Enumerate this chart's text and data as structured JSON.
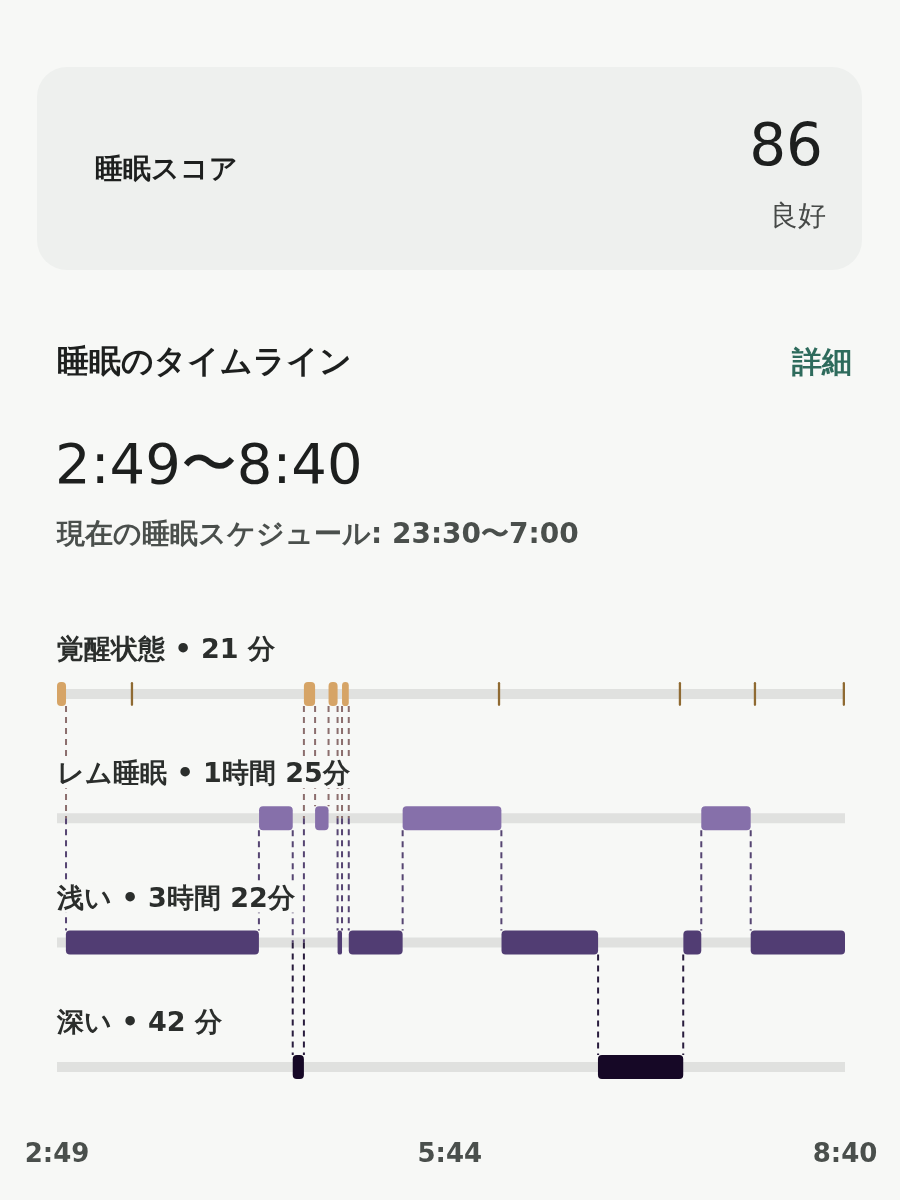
{
  "chart_data": [
    {
      "type": "other",
      "title": "睡眠スコア",
      "annotations": [
        "86",
        "良好"
      ]
    },
    {
      "type": "bar",
      "orientation": "horizontal",
      "title": "睡眠のタイムライン",
      "subtitle": "2:49〜8:40",
      "annotations": [
        "詳細",
        "現在の睡眠スケジュール: 23:30〜7:00"
      ],
      "categories": [
        "覚醒状態 • 21 分",
        "レム睡眠 • 1時間 25分",
        "浅い • 3時間 22分",
        "深い • 42 分"
      ],
      "xlim": [
        2.817,
        8.667
      ],
      "xticks": [
        {
          "value": 2.817,
          "label": "2:49"
        },
        {
          "value": 5.733,
          "label": "5:44"
        },
        {
          "value": 8.667,
          "label": "8:40"
        }
      ],
      "grid": "y",
      "series": [
        {
          "base": [
            2.817,
            4.317,
            2.883,
            4.567
          ],
          "values": [
            0.067,
            0.25,
            1.433,
            0.083
          ],
          "colors": [
            "#d6a466",
            "#8670aa",
            "#513d73",
            "#160826"
          ]
        },
        {
          "base": [
            3.365,
            4.733,
            4.9,
            6.833
          ],
          "values": [
            0.017,
            0.1,
            0.033,
            0.633
          ],
          "colors": [
            "#8f6a32",
            "#8670aa",
            "#513d73",
            "#160826"
          ]
        },
        {
          "base": [
            4.65,
            5.383,
            4.983,
            null
          ],
          "values": [
            0.083,
            0.733,
            0.4,
            null
          ],
          "colors": [
            "#d6a466",
            "#8670aa",
            "#513d73",
            null
          ]
        },
        {
          "base": [
            4.833,
            7.6,
            6.117,
            null
          ],
          "values": [
            0.067,
            0.367,
            0.717,
            null
          ],
          "colors": [
            "#d6a466",
            "#8670aa",
            "#513d73",
            null
          ]
        },
        {
          "base": [
            4.933,
            null,
            7.467,
            null
          ],
          "values": [
            0.05,
            null,
            0.133,
            null
          ],
          "colors": [
            "#d6a466",
            null,
            "#513d73",
            null
          ]
        },
        {
          "base": [
            6.09,
            null,
            7.967,
            null
          ],
          "values": [
            0.017,
            null,
            0.7,
            null
          ],
          "colors": [
            "#8f6a32",
            null,
            "#513d73",
            null
          ]
        },
        {
          "base": [
            7.433,
            null,
            null,
            null
          ],
          "values": [
            0.017,
            null,
            null,
            null
          ],
          "colors": [
            "#8f6a32",
            null,
            null,
            null
          ]
        },
        {
          "base": [
            7.99,
            null,
            null,
            null
          ],
          "values": [
            0.017,
            null,
            null,
            null
          ],
          "colors": [
            "#8f6a32",
            null,
            null,
            null
          ]
        },
        {
          "base": [
            8.65,
            null,
            null,
            null
          ],
          "values": [
            0.017,
            null,
            null,
            null
          ],
          "colors": [
            "#8f6a32",
            null,
            null,
            null
          ]
        }
      ]
    }
  ]
}
